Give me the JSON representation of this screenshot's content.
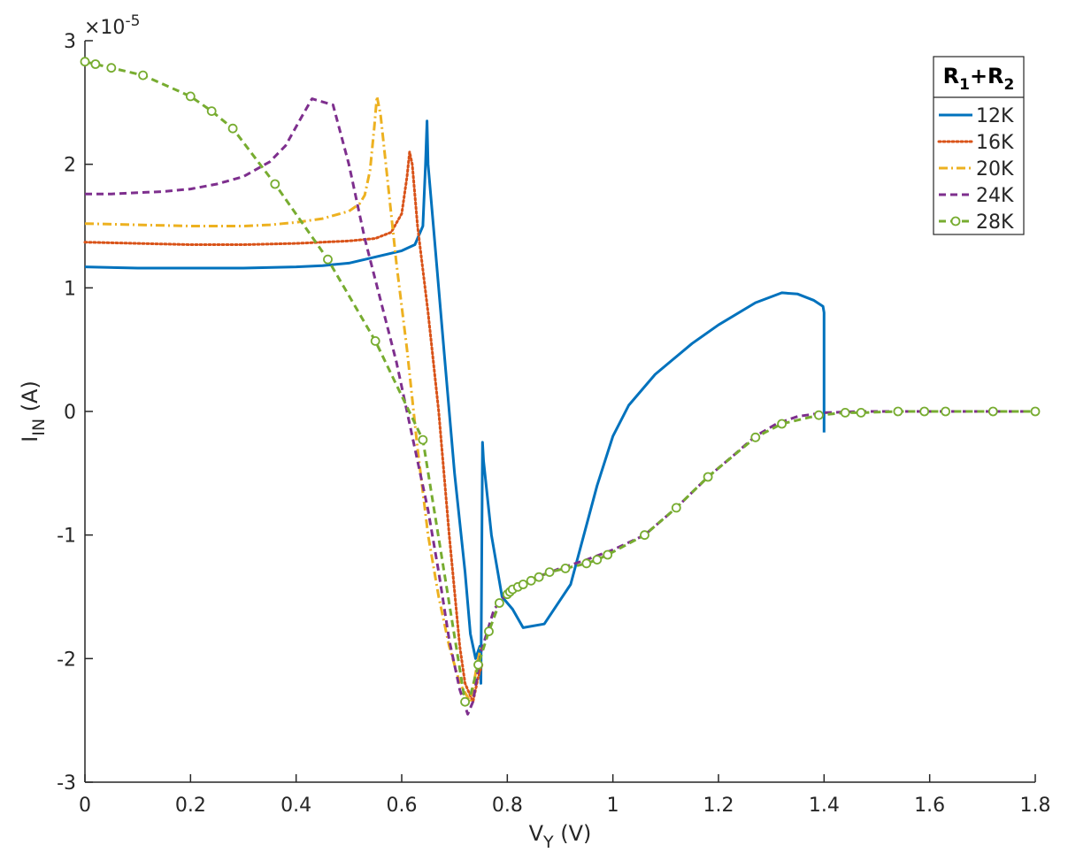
{
  "chart_data": {
    "type": "line",
    "exponent_label": {
      "base": "×10",
      "power": "-5"
    },
    "xlabel": {
      "main": "V",
      "sub": "Y",
      "unit": " (V)"
    },
    "ylabel": {
      "main": "I",
      "sub": "IN",
      "unit": " (A)"
    },
    "xlim": [
      0,
      1.8
    ],
    "ylim": [
      -3,
      3
    ],
    "xticks": [
      0,
      0.2,
      0.4,
      0.6,
      0.8,
      1,
      1.2,
      1.4,
      1.6,
      1.8
    ],
    "xtick_labels": [
      "0",
      "0.2",
      "0.4",
      "0.6",
      "0.8",
      "1",
      "1.2",
      "1.4",
      "1.6",
      "1.8"
    ],
    "yticks": [
      -3,
      -2,
      -1,
      0,
      1,
      2,
      3
    ],
    "ytick_labels": [
      "-3",
      "-2",
      "-1",
      "0",
      "1",
      "2",
      "3"
    ],
    "grid": false,
    "legend_position": "top-right",
    "legend_title": {
      "r1": "R",
      "s1": "1",
      "plus": "+",
      "r2": "R",
      "s2": "2"
    },
    "series": [
      {
        "name": "12K",
        "color": "#0072BD",
        "dash": "solid",
        "marker": "none",
        "points": [
          [
            0,
            1.17
          ],
          [
            0.1,
            1.16
          ],
          [
            0.2,
            1.16
          ],
          [
            0.3,
            1.16
          ],
          [
            0.4,
            1.17
          ],
          [
            0.45,
            1.18
          ],
          [
            0.5,
            1.2
          ],
          [
            0.55,
            1.25
          ],
          [
            0.6,
            1.3
          ],
          [
            0.625,
            1.35
          ],
          [
            0.64,
            1.5
          ],
          [
            0.645,
            2.0
          ],
          [
            0.648,
            2.35
          ],
          [
            0.65,
            2.0
          ],
          [
            0.66,
            1.5
          ],
          [
            0.68,
            0.5
          ],
          [
            0.7,
            -0.5
          ],
          [
            0.72,
            -1.3
          ],
          [
            0.73,
            -1.8
          ],
          [
            0.74,
            -2.0
          ],
          [
            0.748,
            -1.9
          ],
          [
            0.75,
            -2.2
          ],
          [
            0.753,
            -0.25
          ],
          [
            0.755,
            -0.4
          ],
          [
            0.77,
            -1.0
          ],
          [
            0.79,
            -1.5
          ],
          [
            0.81,
            -1.6
          ],
          [
            0.83,
            -1.75
          ],
          [
            0.87,
            -1.72
          ],
          [
            0.92,
            -1.4
          ],
          [
            0.97,
            -0.6
          ],
          [
            1.0,
            -0.2
          ],
          [
            1.03,
            0.05
          ],
          [
            1.08,
            0.3
          ],
          [
            1.15,
            0.55
          ],
          [
            1.2,
            0.7
          ],
          [
            1.27,
            0.88
          ],
          [
            1.32,
            0.96
          ],
          [
            1.35,
            0.95
          ],
          [
            1.38,
            0.9
          ],
          [
            1.398,
            0.85
          ],
          [
            1.4,
            0.8
          ],
          [
            1.4,
            -0.17
          ]
        ]
      },
      {
        "name": "16K",
        "color": "#D95319",
        "dash": "dotted",
        "marker": "none",
        "points": [
          [
            0,
            1.37
          ],
          [
            0.1,
            1.36
          ],
          [
            0.2,
            1.35
          ],
          [
            0.3,
            1.35
          ],
          [
            0.4,
            1.36
          ],
          [
            0.5,
            1.38
          ],
          [
            0.55,
            1.4
          ],
          [
            0.58,
            1.45
          ],
          [
            0.6,
            1.6
          ],
          [
            0.61,
            1.9
          ],
          [
            0.615,
            2.1
          ],
          [
            0.62,
            2.0
          ],
          [
            0.63,
            1.5
          ],
          [
            0.65,
            0.8
          ],
          [
            0.67,
            0.0
          ],
          [
            0.69,
            -1.0
          ],
          [
            0.71,
            -1.9
          ],
          [
            0.72,
            -2.2
          ],
          [
            0.735,
            -2.35
          ],
          [
            0.745,
            -2.15
          ],
          [
            0.752,
            -2.05
          ]
        ]
      },
      {
        "name": "20K",
        "color": "#EDB120",
        "dash": "dashdot",
        "marker": "none",
        "points": [
          [
            0,
            1.52
          ],
          [
            0.1,
            1.51
          ],
          [
            0.2,
            1.5
          ],
          [
            0.3,
            1.5
          ],
          [
            0.35,
            1.51
          ],
          [
            0.4,
            1.53
          ],
          [
            0.45,
            1.56
          ],
          [
            0.5,
            1.62
          ],
          [
            0.52,
            1.68
          ],
          [
            0.53,
            1.75
          ],
          [
            0.54,
            1.95
          ],
          [
            0.548,
            2.3
          ],
          [
            0.553,
            2.55
          ],
          [
            0.56,
            2.4
          ],
          [
            0.57,
            2.0
          ],
          [
            0.59,
            1.2
          ],
          [
            0.61,
            0.5
          ],
          [
            0.63,
            -0.3
          ],
          [
            0.65,
            -1.0
          ],
          [
            0.67,
            -1.5
          ],
          [
            0.69,
            -1.9
          ],
          [
            0.71,
            -2.2
          ],
          [
            0.73,
            -2.35
          ],
          [
            0.745,
            -2.0
          ],
          [
            0.75,
            -1.9
          ]
        ]
      },
      {
        "name": "24K",
        "color": "#7E2F8E",
        "dash": "dashed",
        "marker": "none",
        "points": [
          [
            0,
            1.76
          ],
          [
            0.05,
            1.76
          ],
          [
            0.1,
            1.77
          ],
          [
            0.15,
            1.78
          ],
          [
            0.2,
            1.8
          ],
          [
            0.25,
            1.84
          ],
          [
            0.3,
            1.9
          ],
          [
            0.35,
            2.02
          ],
          [
            0.38,
            2.15
          ],
          [
            0.41,
            2.38
          ],
          [
            0.43,
            2.53
          ],
          [
            0.47,
            2.48
          ],
          [
            0.5,
            2.0
          ],
          [
            0.53,
            1.4
          ],
          [
            0.56,
            0.9
          ],
          [
            0.59,
            0.4
          ],
          [
            0.62,
            -0.2
          ],
          [
            0.65,
            -0.8
          ],
          [
            0.67,
            -1.3
          ],
          [
            0.69,
            -1.85
          ],
          [
            0.71,
            -2.25
          ],
          [
            0.725,
            -2.45
          ],
          [
            0.735,
            -2.35
          ],
          [
            0.75,
            -1.95
          ],
          [
            0.775,
            -1.6
          ],
          [
            0.8,
            -1.47
          ],
          [
            0.85,
            -1.35
          ],
          [
            0.9,
            -1.27
          ],
          [
            0.95,
            -1.2
          ],
          [
            1.0,
            -1.12
          ],
          [
            1.06,
            -1.0
          ],
          [
            1.12,
            -0.78
          ],
          [
            1.18,
            -0.53
          ],
          [
            1.23,
            -0.35
          ],
          [
            1.27,
            -0.2
          ],
          [
            1.31,
            -0.1
          ],
          [
            1.35,
            -0.04
          ],
          [
            1.4,
            -0.01
          ],
          [
            1.47,
            0.0
          ],
          [
            1.6,
            0.0
          ],
          [
            1.8,
            0.0
          ]
        ]
      },
      {
        "name": "28K",
        "color": "#77AC30",
        "dash": "dashed",
        "marker": "circle",
        "points": [
          [
            0,
            2.83
          ],
          [
            0.02,
            2.81
          ],
          [
            0.05,
            2.78
          ],
          [
            0.11,
            2.72
          ],
          [
            0.2,
            2.55
          ],
          [
            0.24,
            2.43
          ],
          [
            0.28,
            2.29
          ],
          [
            0.36,
            1.84
          ],
          [
            0.46,
            1.23
          ],
          [
            0.55,
            0.57
          ],
          [
            0.64,
            -0.23
          ],
          [
            0.72,
            -2.35
          ],
          [
            0.73,
            -2.3
          ],
          [
            0.745,
            -2.05
          ],
          [
            0.765,
            -1.78
          ],
          [
            0.785,
            -1.55
          ],
          [
            0.8,
            -1.48
          ],
          [
            0.805,
            -1.46
          ],
          [
            0.81,
            -1.44
          ],
          [
            0.82,
            -1.42
          ],
          [
            0.83,
            -1.4
          ],
          [
            0.845,
            -1.37
          ],
          [
            0.86,
            -1.34
          ],
          [
            0.88,
            -1.3
          ],
          [
            0.91,
            -1.27
          ],
          [
            0.95,
            -1.23
          ],
          [
            0.97,
            -1.2
          ],
          [
            0.99,
            -1.16
          ],
          [
            1.06,
            -1.0
          ],
          [
            1.12,
            -0.78
          ],
          [
            1.18,
            -0.53
          ],
          [
            1.27,
            -0.21
          ],
          [
            1.32,
            -0.1
          ],
          [
            1.39,
            -0.03
          ],
          [
            1.44,
            -0.01
          ],
          [
            1.47,
            -0.01
          ],
          [
            1.54,
            0.0
          ],
          [
            1.59,
            0.0
          ],
          [
            1.63,
            0.0
          ],
          [
            1.72,
            0.0
          ],
          [
            1.8,
            0.0
          ]
        ],
        "marker_points": [
          [
            0,
            2.83
          ],
          [
            0.02,
            2.81
          ],
          [
            0.05,
            2.78
          ],
          [
            0.11,
            2.72
          ],
          [
            0.2,
            2.55
          ],
          [
            0.24,
            2.43
          ],
          [
            0.28,
            2.29
          ],
          [
            0.36,
            1.84
          ],
          [
            0.46,
            1.23
          ],
          [
            0.55,
            0.57
          ],
          [
            0.64,
            -0.23
          ],
          [
            0.72,
            -2.35
          ],
          [
            0.745,
            -2.05
          ],
          [
            0.765,
            -1.78
          ],
          [
            0.785,
            -1.55
          ],
          [
            0.8,
            -1.48
          ],
          [
            0.805,
            -1.46
          ],
          [
            0.81,
            -1.44
          ],
          [
            0.82,
            -1.42
          ],
          [
            0.83,
            -1.4
          ],
          [
            0.845,
            -1.37
          ],
          [
            0.86,
            -1.34
          ],
          [
            0.88,
            -1.3
          ],
          [
            0.91,
            -1.27
          ],
          [
            0.95,
            -1.23
          ],
          [
            0.97,
            -1.2
          ],
          [
            0.99,
            -1.16
          ],
          [
            1.06,
            -1.0
          ],
          [
            1.12,
            -0.78
          ],
          [
            1.18,
            -0.53
          ],
          [
            1.27,
            -0.21
          ],
          [
            1.32,
            -0.1
          ],
          [
            1.39,
            -0.03
          ],
          [
            1.44,
            -0.01
          ],
          [
            1.47,
            -0.01
          ],
          [
            1.54,
            0.0
          ],
          [
            1.59,
            0.0
          ],
          [
            1.63,
            0.0
          ],
          [
            1.72,
            0.0
          ],
          [
            1.8,
            0.0
          ]
        ]
      }
    ]
  }
}
